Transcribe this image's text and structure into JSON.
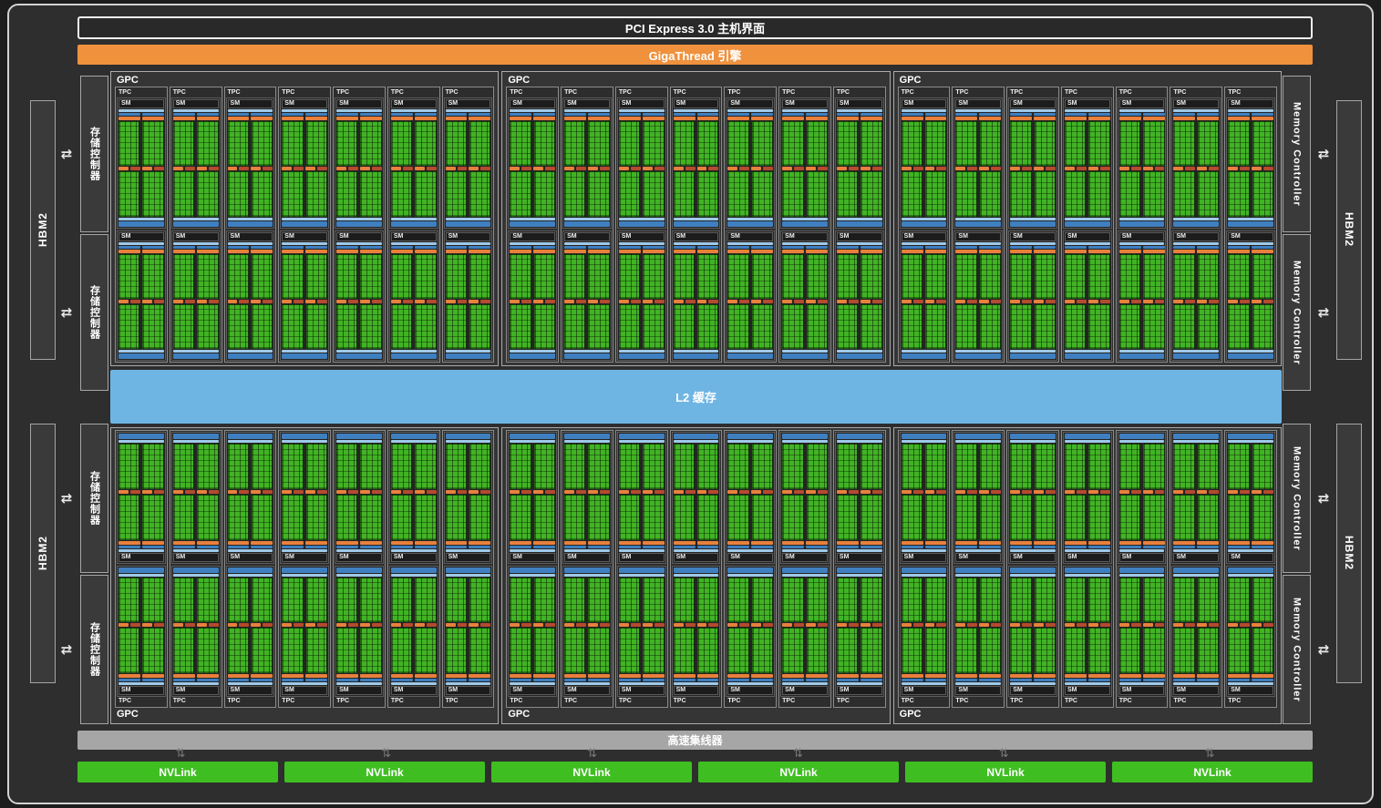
{
  "title_bars": {
    "pci": "PCI Express 3.0 主机界面",
    "gigathread": "GigaThread 引擎",
    "l2": "L2 缓存",
    "hub": "高速集线器",
    "nvlink": "NVLink"
  },
  "labels": {
    "gpc": "GPC",
    "tpc": "TPC",
    "sm": "SM"
  },
  "sides": {
    "left": {
      "hbm2": "HBM2",
      "memory_controller": "存储控制器"
    },
    "right": {
      "hbm2": "HBM2",
      "memory_controller": "Memory Controller"
    }
  },
  "structure": {
    "gpc_rows": 2,
    "gpcs_per_row": 3,
    "tpcs_per_gpc": 7,
    "sms_per_tpc": 2,
    "nvlink_count": 6,
    "hbm2_per_side": 2,
    "memory_controllers_per_side": 4
  },
  "colors": {
    "gigathread_orange": "#EF913D",
    "l2_blue": "#6FB5E3",
    "nvlink_green": "#3FBE21",
    "hub_gray": "#A6A6A6",
    "sm_core_green": "#41B324",
    "sm_blue": "#3F7FBF",
    "sm_light_blue": "#9EC9E8",
    "sm_orange": "#E8803C"
  },
  "icons": {
    "hbm_arrow": "⇄",
    "nvlink_arrow": "⇅"
  }
}
